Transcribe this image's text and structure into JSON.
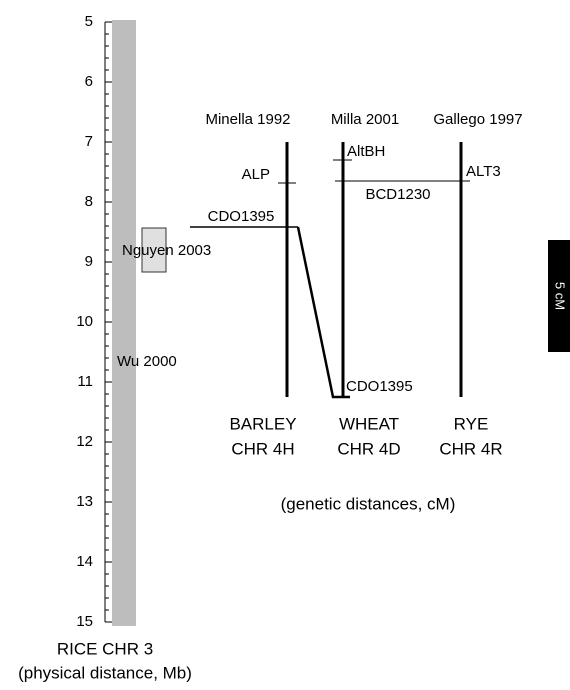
{
  "rice_axis": {
    "ticks": [
      5,
      6,
      7,
      8,
      9,
      10,
      11,
      12,
      13,
      14,
      15
    ],
    "range": [
      5,
      15
    ],
    "title": "RICE CHR 3",
    "subtitle": "(physical distance, Mb)"
  },
  "rice_labels": {
    "nguyen": "Nguyen 2003",
    "wu": "Wu 2000"
  },
  "maps": [
    {
      "source": "Minella 1992",
      "name": "BARLEY",
      "chr": "CHR 4H"
    },
    {
      "source": "Milla 2001",
      "name": "WHEAT",
      "chr": "CHR 4D"
    },
    {
      "source": "Gallego 1997",
      "name": "RYE",
      "chr": "CHR 4R"
    }
  ],
  "markers": {
    "alp": "ALP",
    "altbh": "AltBH",
    "alt3": "ALT3",
    "bcd1230": "BCD1230",
    "cdo1395_barley": "CDO1395",
    "cdo1395_wheat": "CDO1395"
  },
  "caption": "(genetic distances, cM)",
  "scale_bar": "5 cM"
}
